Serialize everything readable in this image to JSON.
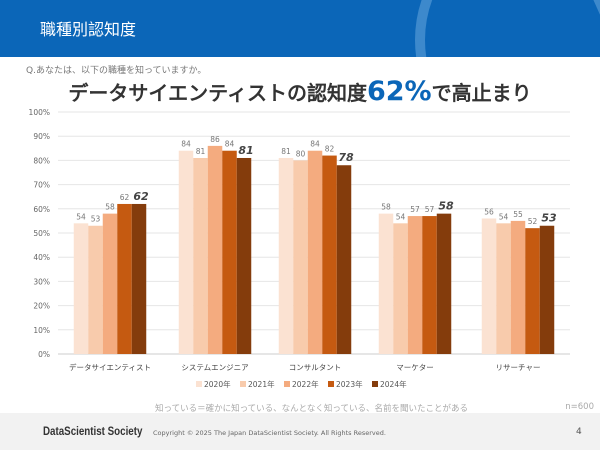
{
  "header": {
    "title": "職種別認知度"
  },
  "question": "Q.あなたは、以下の職種を知っていますか。",
  "headline": {
    "before": "データサイエンティストの認知度",
    "highlight": "62%",
    "after": "で高止まり"
  },
  "note": "知っている＝確かに知っている、なんとなく知っている、名前を聞いたことがある",
  "sample": "n=600",
  "footer": {
    "logo": "DataScientist Society",
    "copyright": "Copyright © 2025  The Japan DataScientist Society. All Rights Reserved.",
    "page": "4"
  },
  "chart_data": {
    "type": "bar",
    "categories": [
      "データサイエンティスト",
      "システムエンジニア",
      "コンサルタント",
      "マーケター",
      "リサーチャー"
    ],
    "series": [
      {
        "name": "2020年",
        "color": "#fbe2d2",
        "values": [
          54,
          84,
          81,
          58,
          56
        ]
      },
      {
        "name": "2021年",
        "color": "#f8cbac",
        "values": [
          53,
          81,
          80,
          54,
          54
        ]
      },
      {
        "name": "2022年",
        "color": "#f4ab7f",
        "values": [
          58,
          86,
          84,
          57,
          55
        ]
      },
      {
        "name": "2023年",
        "color": "#c55a11",
        "values": [
          62,
          84,
          82,
          57,
          52
        ]
      },
      {
        "name": "2024年",
        "color": "#843c0c",
        "values": [
          62,
          81,
          78,
          58,
          53
        ]
      }
    ],
    "ylim": [
      0,
      100
    ],
    "yticks": [
      "0%",
      "10%",
      "20%",
      "30%",
      "40%",
      "50%",
      "60%",
      "70%",
      "80%",
      "90%",
      "100%"
    ],
    "grid": true,
    "legend": "bottom"
  }
}
